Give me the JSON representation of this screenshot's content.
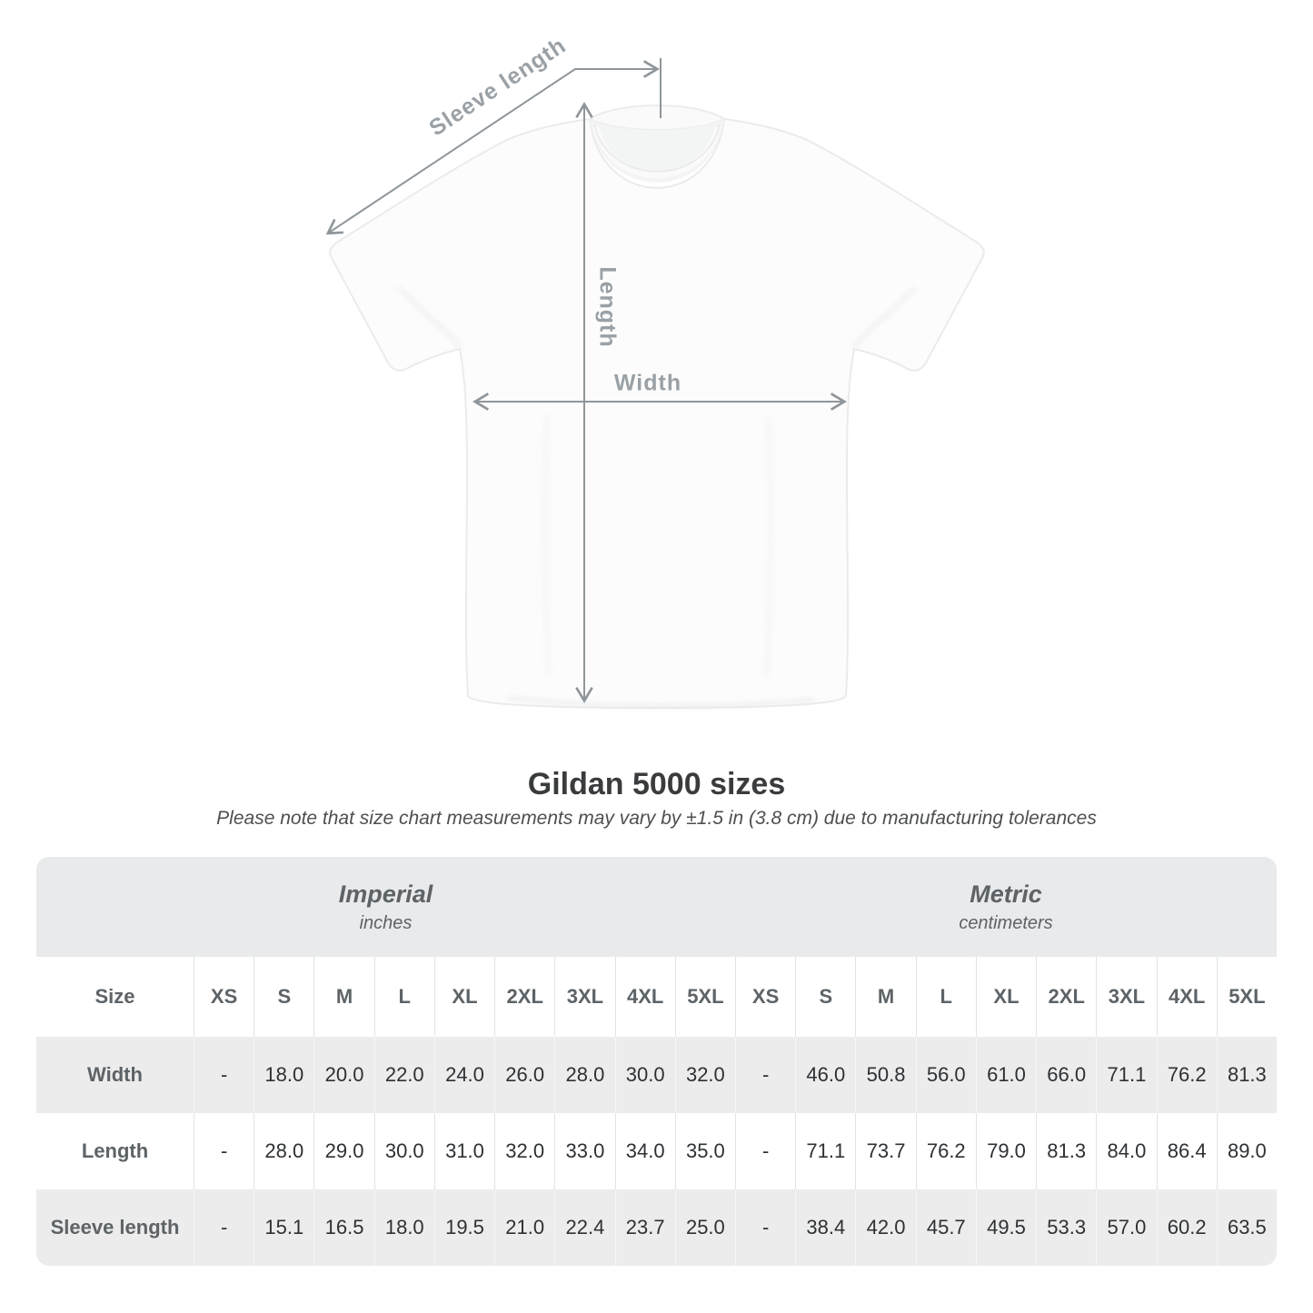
{
  "diagram": {
    "sleeve_length_label": "Sleeve length",
    "length_label": "Length",
    "width_label": "Width"
  },
  "heading": {
    "title": "Gildan 5000 sizes",
    "subtitle": "Please note that size chart measurements may vary by ±1.5 in (3.8 cm) due to manufacturing tolerances"
  },
  "size_table": {
    "corner_header": "Size",
    "groups": [
      {
        "label": "Imperial",
        "unit": "inches"
      },
      {
        "label": "Metric",
        "unit": "centimeters"
      }
    ],
    "columns": [
      "XS",
      "S",
      "M",
      "L",
      "XL",
      "2XL",
      "3XL",
      "4XL",
      "5XL",
      "XS",
      "S",
      "M",
      "L",
      "XL",
      "2XL",
      "3XL",
      "4XL",
      "5XL"
    ],
    "rows": [
      {
        "label": "Width",
        "values": [
          "-",
          "18.0",
          "20.0",
          "22.0",
          "24.0",
          "26.0",
          "28.0",
          "30.0",
          "32.0",
          "-",
          "46.0",
          "50.8",
          "56.0",
          "61.0",
          "66.0",
          "71.1",
          "76.2",
          "81.3"
        ]
      },
      {
        "label": "Length",
        "values": [
          "-",
          "28.0",
          "29.0",
          "30.0",
          "31.0",
          "32.0",
          "33.0",
          "34.0",
          "35.0",
          "-",
          "71.1",
          "73.7",
          "76.2",
          "79.0",
          "81.3",
          "84.0",
          "86.4",
          "89.0"
        ]
      },
      {
        "label": "Sleeve length",
        "values": [
          "-",
          "15.1",
          "16.5",
          "18.0",
          "19.5",
          "21.0",
          "22.4",
          "23.7",
          "25.0",
          "-",
          "38.4",
          "42.0",
          "45.7",
          "49.5",
          "53.3",
          "57.0",
          "60.2",
          "63.5"
        ]
      }
    ]
  },
  "colors": {
    "measurement_gray": "#8f969b",
    "label_gray": "#9aa1a6",
    "header_slate": "#5d6367",
    "value_dark": "#2e3134",
    "band_gray": "#e9eaeb",
    "row_gray": "#ececec",
    "title_dark": "#393b3d"
  },
  "chart_data": {
    "type": "table",
    "title": "Gildan 5000 sizes",
    "note": "Please note that size chart measurements may vary by ±1.5 in (3.8 cm) due to manufacturing tolerances",
    "sizes": [
      "XS",
      "S",
      "M",
      "L",
      "XL",
      "2XL",
      "3XL",
      "4XL",
      "5XL"
    ],
    "column_groups": [
      {
        "label": "Imperial",
        "unit": "inches"
      },
      {
        "label": "Metric",
        "unit": "centimeters"
      }
    ],
    "measurements": [
      {
        "name": "Width",
        "imperial_in": [
          null,
          18.0,
          20.0,
          22.0,
          24.0,
          26.0,
          28.0,
          30.0,
          32.0
        ],
        "metric_cm": [
          null,
          46.0,
          50.8,
          56.0,
          61.0,
          66.0,
          71.1,
          76.2,
          81.3
        ]
      },
      {
        "name": "Length",
        "imperial_in": [
          null,
          28.0,
          29.0,
          30.0,
          31.0,
          32.0,
          33.0,
          34.0,
          35.0
        ],
        "metric_cm": [
          null,
          71.1,
          73.7,
          76.2,
          79.0,
          81.3,
          84.0,
          86.4,
          89.0
        ]
      },
      {
        "name": "Sleeve length",
        "imperial_in": [
          null,
          15.1,
          16.5,
          18.0,
          19.5,
          21.0,
          22.4,
          23.7,
          25.0
        ],
        "metric_cm": [
          null,
          38.4,
          42.0,
          45.7,
          49.5,
          53.3,
          57.0,
          60.2,
          63.5
        ]
      }
    ],
    "layout": {
      "diagram_labels": [
        "Sleeve length",
        "Length",
        "Width"
      ],
      "grid": false,
      "legend": "none"
    }
  }
}
